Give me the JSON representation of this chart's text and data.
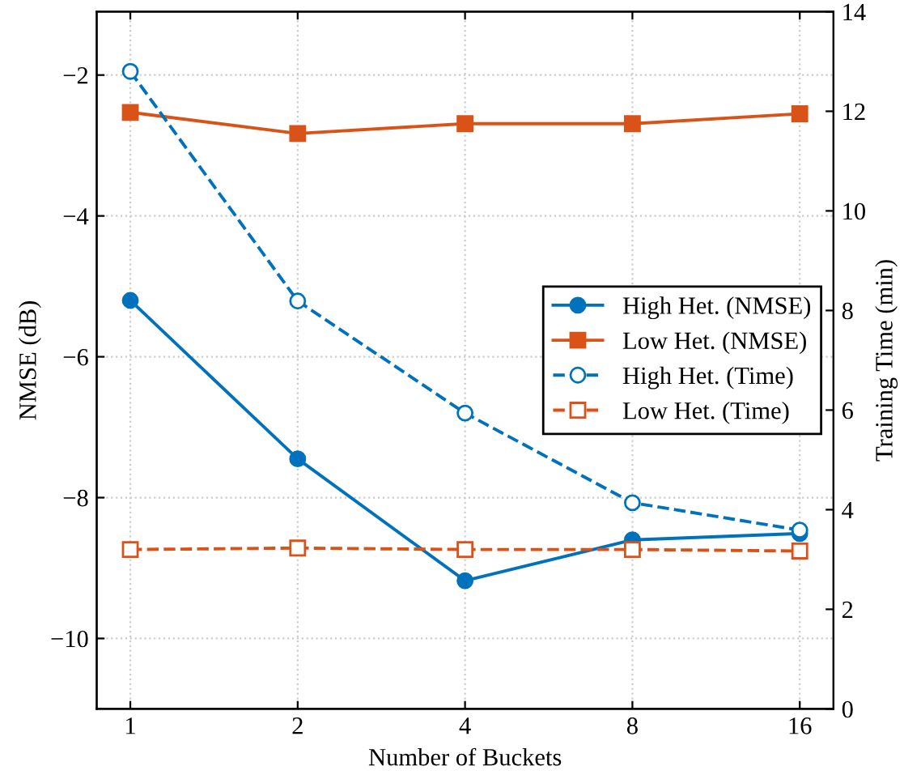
{
  "chart_data": {
    "type": "line",
    "xlabel": "Number of Buckets",
    "ylabel": "NMSE (dB)",
    "y2label": "Training Time (min)",
    "x": [
      1,
      2,
      4,
      8,
      16
    ],
    "log": "x",
    "xlim": [
      0.87,
      18.4
    ],
    "xticks": [
      1,
      2,
      4,
      8,
      16
    ],
    "ylim": [
      -11,
      -1.1
    ],
    "yticks": [
      {
        "value": -10,
        "label": "−10"
      },
      {
        "value": -8,
        "label": "−8"
      },
      {
        "value": -6,
        "label": "−6"
      },
      {
        "value": -4,
        "label": "−4"
      },
      {
        "value": -2,
        "label": "−2"
      }
    ],
    "y2lim": [
      0,
      14
    ],
    "y2ticks": [
      0,
      2,
      4,
      6,
      8,
      10,
      12,
      14
    ],
    "grid": true,
    "legend": "right",
    "series": [
      {
        "name": "High Het. (NMSE)",
        "color": "#0072bd",
        "values": [
          -5.2,
          -7.45,
          -9.18,
          -8.6,
          -8.51
        ],
        "marker": "circle",
        "line_style": "solid"
      },
      {
        "name": "Low Het. (NMSE)",
        "color": "#d95319",
        "values": [
          -2.53,
          -2.83,
          -2.69,
          -2.69,
          -2.55
        ],
        "marker": "square",
        "line_style": "solid"
      },
      {
        "name": "High Het. (Time)",
        "color": "#0072bd",
        "values": [
          12.8,
          8.19,
          5.94,
          4.14,
          3.59
        ],
        "marker": "circle",
        "line_style": "dashed",
        "axis": "y2"
      },
      {
        "name": "Low Het. (Time)",
        "color": "#d95319",
        "values": [
          3.2,
          3.23,
          3.2,
          3.2,
          3.17
        ],
        "marker": "square",
        "line_style": "dashed",
        "axis": "y2"
      }
    ]
  }
}
